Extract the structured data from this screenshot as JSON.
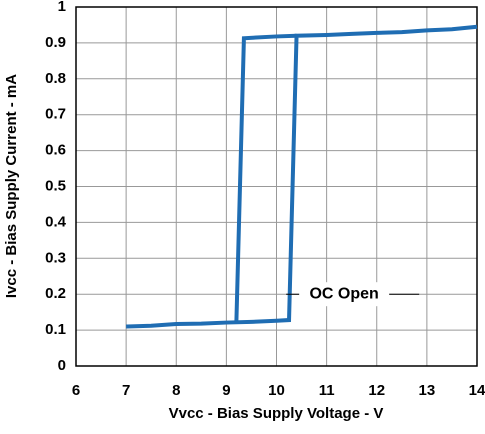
{
  "chart_data": {
    "type": "line",
    "xlabel": "Vvcc - Bias Supply Voltage - V",
    "ylabel": "Ivcc - Bias Supply Current - mA",
    "annotation": {
      "text": "OC Open",
      "x": 11.35,
      "y": 0.2
    },
    "xlim": [
      6,
      14
    ],
    "xticks": [
      6,
      7,
      8,
      9,
      10,
      11,
      12,
      13,
      14
    ],
    "ylim": [
      0,
      1
    ],
    "yticks": [
      0,
      0.1,
      0.2,
      0.3,
      0.4,
      0.5,
      0.6,
      0.7,
      0.8,
      0.9,
      1
    ],
    "grid": true,
    "series": [
      {
        "color": "#1f6db3",
        "x": [
          7,
          7.5,
          8,
          8.5,
          9,
          9.5,
          10,
          10.25,
          10.4,
          11,
          11.5,
          12,
          12.5,
          13,
          13.5,
          14
        ],
        "values": [
          0.11,
          0.112,
          0.117,
          0.118,
          0.121,
          0.123,
          0.126,
          0.128,
          0.92,
          0.922,
          0.925,
          0.928,
          0.93,
          0.935,
          0.938,
          0.945
        ]
      },
      {
        "color": "#1f6db3",
        "x": [
          10.4,
          10,
          9.35,
          9.2
        ],
        "values": [
          0.92,
          0.918,
          0.913,
          0.125
        ]
      }
    ]
  }
}
